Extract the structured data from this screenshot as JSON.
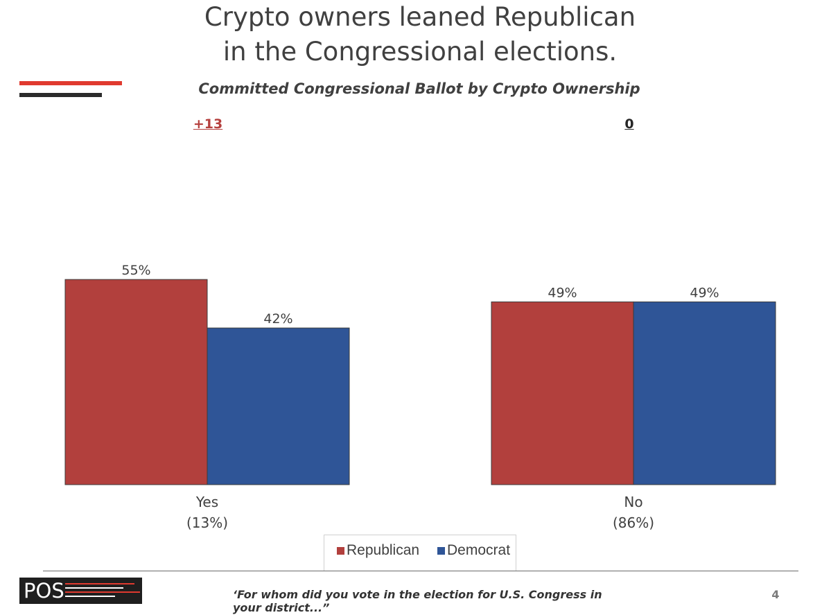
{
  "title": {
    "line1": "Crypto owners leaned Republican",
    "line2": "in the Congressional elections."
  },
  "subtitle": "Committed Congressional Ballot by Crypto Ownership",
  "margins": [
    {
      "text": "+13",
      "color": "#b5403e"
    },
    {
      "text": "0",
      "color": "#262626"
    }
  ],
  "chart_data": {
    "type": "bar",
    "title": "Committed Congressional Ballot by Crypto Ownership",
    "categories": [
      "Yes\n(13%)",
      "No\n(86%)"
    ],
    "category_lines": [
      [
        "Yes",
        "(13%)"
      ],
      [
        "No",
        "(86%)"
      ]
    ],
    "series": [
      {
        "name": "Republican",
        "values": [
          55,
          49
        ],
        "color": "#b2403d"
      },
      {
        "name": "Democrat",
        "values": [
          42,
          49
        ],
        "color": "#2f5597"
      }
    ],
    "value_suffix": "%",
    "ylim": [
      0,
      60
    ],
    "grid": false,
    "legend": "bottom"
  },
  "legend": {
    "items": [
      {
        "label": "Republican",
        "color": "#b2403d"
      },
      {
        "label": "Democrat",
        "color": "#2f5597"
      }
    ]
  },
  "footer": {
    "logo_text": "POS",
    "quote": "‘For whom did you vote in the election for U.S. Congress in your district...”",
    "page_number": "4"
  }
}
